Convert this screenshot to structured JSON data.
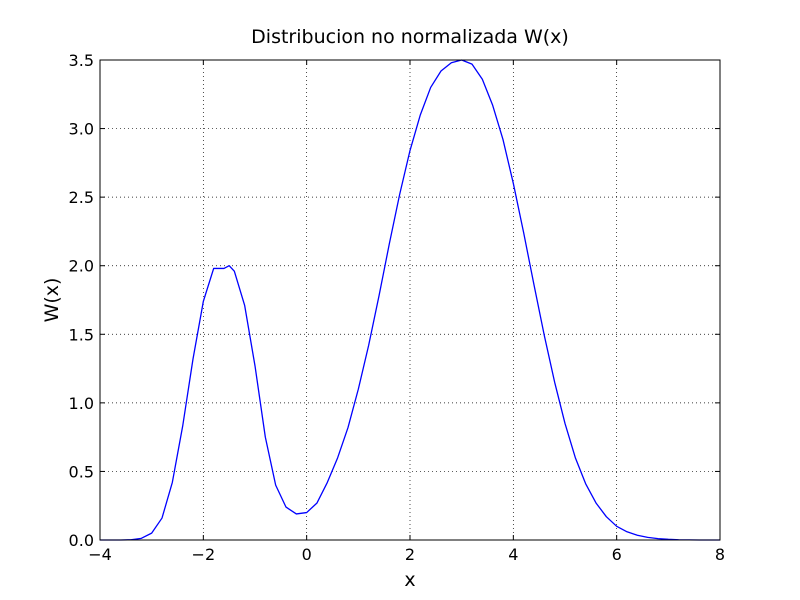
{
  "chart_data": {
    "type": "line",
    "title": "Distribucion no normalizada W(x)",
    "xlabel": "x",
    "ylabel": "W(x)",
    "xlim": [
      -4,
      8
    ],
    "ylim": [
      0,
      3.5
    ],
    "grid": true,
    "x_ticks": [
      -4,
      -2,
      0,
      2,
      4,
      6,
      8
    ],
    "x_tick_labels": [
      "−4",
      "−2",
      "0",
      "2",
      "4",
      "6",
      "8"
    ],
    "y_ticks": [
      0,
      0.5,
      1,
      1.5,
      2,
      2.5,
      3,
      3.5
    ],
    "y_tick_labels": [
      "0.0",
      "0.5",
      "1.0",
      "1.5",
      "2.0",
      "2.5",
      "3.0",
      "3.5"
    ],
    "line_color": "#0000ff",
    "series": [
      {
        "name": "W(x)",
        "x": [
          -4.0,
          -3.8,
          -3.6,
          -3.4,
          -3.2,
          -3.0,
          -2.8,
          -2.6,
          -2.4,
          -2.2,
          -2.0,
          -1.8,
          -1.6,
          -1.5,
          -1.4,
          -1.2,
          -1.0,
          -0.8,
          -0.6,
          -0.4,
          -0.2,
          0.0,
          0.2,
          0.4,
          0.6,
          0.8,
          1.0,
          1.2,
          1.4,
          1.6,
          1.8,
          2.0,
          2.2,
          2.4,
          2.6,
          2.8,
          3.0,
          3.2,
          3.4,
          3.6,
          3.8,
          4.0,
          4.2,
          4.4,
          4.6,
          4.8,
          5.0,
          5.2,
          5.4,
          5.6,
          5.8,
          6.0,
          6.2,
          6.4,
          6.6,
          6.8,
          7.0,
          7.2,
          7.4,
          7.6,
          7.8,
          8.0
        ],
        "y": [
          0.0,
          0.0,
          0.0,
          0.002,
          0.012,
          0.05,
          0.16,
          0.42,
          0.83,
          1.32,
          1.74,
          1.98,
          1.98,
          2.0,
          1.96,
          1.71,
          1.27,
          0.75,
          0.4,
          0.24,
          0.19,
          0.2,
          0.27,
          0.42,
          0.6,
          0.82,
          1.1,
          1.42,
          1.78,
          2.16,
          2.52,
          2.84,
          3.1,
          3.3,
          3.42,
          3.48,
          3.5,
          3.47,
          3.36,
          3.17,
          2.92,
          2.6,
          2.24,
          1.86,
          1.49,
          1.15,
          0.85,
          0.6,
          0.41,
          0.27,
          0.17,
          0.1,
          0.06,
          0.035,
          0.019,
          0.01,
          0.005,
          0.002,
          0.001,
          0.0,
          0.0,
          0.0
        ]
      }
    ]
  }
}
